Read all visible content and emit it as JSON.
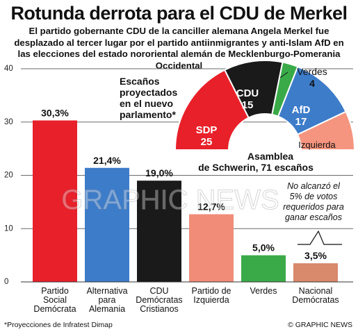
{
  "header": {
    "title": "Rotunda derrota para el CDU de Merkel",
    "subtitle": "El partido gobernante CDU de la canciller alemana Angela Merkel fue desplazado al tercer lugar por el partido antiinmigrantes y anti-Islam AfD en las elecciones del estado nororiental alemán de Mecklenburgo-Pomerania Occidental"
  },
  "chart_data": [
    {
      "type": "bar",
      "categories": [
        [
          "Partido",
          "Social",
          "Demócrata"
        ],
        [
          "Alternativa",
          "para",
          "Alemania"
        ],
        [
          "CDU",
          "Demócratas",
          "Cristianos"
        ],
        [
          "Partido de",
          "Izquierda"
        ],
        [
          "Verdes"
        ],
        [
          "Nacional",
          "Demócratas"
        ]
      ],
      "values": [
        30.3,
        21.4,
        19.0,
        12.7,
        5.0,
        3.5
      ],
      "value_labels": [
        "30,3%",
        "21,4%",
        "19,0%",
        "12,7%",
        "5,0%",
        "3,5%"
      ],
      "colors": [
        "#e8202a",
        "#3d7cc9",
        "#1a1a1a",
        "#f08c78",
        "#3aaa48",
        "#d9896c"
      ],
      "ylim": [
        0,
        40
      ],
      "yticks": [
        0,
        10,
        20,
        30,
        40
      ],
      "grid": true,
      "annotation": [
        "No alcanzó el",
        "5% de votos",
        "requeridos para",
        "ganar escaños"
      ]
    },
    {
      "type": "pie",
      "subtype": "parliament-semicircle",
      "title": [
        "Escaños",
        "proyectados",
        "en el nuevo",
        "parlamento*"
      ],
      "caption": [
        "Asamblea",
        "de Schwerin, 71 escaños"
      ],
      "slices": [
        {
          "label": "SDP",
          "value": 25,
          "color": "#e8202a"
        },
        {
          "label": "CDU",
          "value": 15,
          "color": "#1a1a1a"
        },
        {
          "label": "Verdes",
          "value": 4,
          "color": "#3aaa48"
        },
        {
          "label": "AfD",
          "value": 17,
          "color": "#3d7cc9"
        },
        {
          "label": "Izquierda",
          "value": 10,
          "color": "#f5957f"
        }
      ],
      "total": 71
    }
  ],
  "watermark": "GRAPHIC NEWS",
  "footer": {
    "note": "*Proyecciones de Infratest Dimap",
    "copyright": "© GRAPHIC NEWS"
  }
}
